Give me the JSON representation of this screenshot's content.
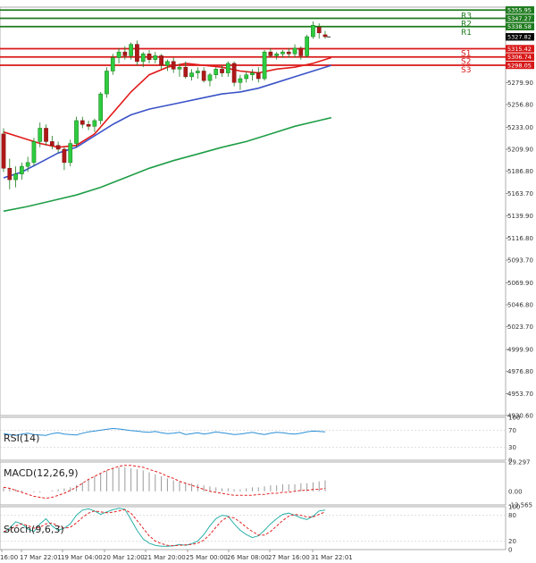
{
  "chart_data": {
    "type": "candlestick",
    "price_axis": {
      "ticks": [
        "5279.90",
        "5256.80",
        "5233.00",
        "5209.90",
        "5186.80",
        "5163.70",
        "5139.90",
        "5116.80",
        "5093.70",
        "5069.90",
        "5046.80",
        "5023.70",
        "4999.90",
        "4976.80",
        "4953.70",
        "4930.60"
      ],
      "tick_values": [
        5279.9,
        5256.8,
        5233.0,
        5209.9,
        5186.8,
        5163.7,
        5139.9,
        5116.8,
        5093.7,
        5069.9,
        5046.8,
        5023.7,
        4999.9,
        4976.8,
        4953.7,
        4930.6
      ],
      "range": [
        4930.6,
        5359.0
      ]
    },
    "time_axis": {
      "labels": [
        "16:00",
        "17 Mar 22:01",
        "19 Mar 04:00",
        "20 Mar 12:00",
        "21 Mar 20:00",
        "25 Mar 00:00",
        "26 Mar 08:00",
        "27 Mar 16:00",
        "31 Mar 22:01"
      ]
    },
    "levels": [
      {
        "name": "R3",
        "value": 5355.95,
        "label": "5355.95",
        "color": "#1e7b1e"
      },
      {
        "name": "R2",
        "value": 5347.27,
        "label": "5347.27",
        "color": "#1e7b1e"
      },
      {
        "name": "R1",
        "value": 5338.58,
        "label": "5338.58",
        "color": "#1e7b1e"
      },
      {
        "name": "S1",
        "value": 5315.42,
        "label": "5315.42",
        "color": "#d81818"
      },
      {
        "name": "S2",
        "value": 5306.74,
        "label": "5306.74",
        "color": "#d81818"
      },
      {
        "name": "S3",
        "value": 5298.05,
        "label": "5298.05",
        "color": "#d81818"
      }
    ],
    "last_price": {
      "value": 5327.82,
      "label": "5327.82"
    },
    "candles": [
      {
        "o": 5226,
        "h": 5232,
        "l": 5186,
        "c": 5190
      },
      {
        "o": 5190,
        "h": 5200,
        "l": 5168,
        "c": 5178
      },
      {
        "o": 5178,
        "h": 5192,
        "l": 5170,
        "c": 5184
      },
      {
        "o": 5184,
        "h": 5196,
        "l": 5178,
        "c": 5192
      },
      {
        "o": 5192,
        "h": 5202,
        "l": 5186,
        "c": 5196
      },
      {
        "o": 5196,
        "h": 5222,
        "l": 5192,
        "c": 5218
      },
      {
        "o": 5218,
        "h": 5238,
        "l": 5212,
        "c": 5232
      },
      {
        "o": 5232,
        "h": 5236,
        "l": 5214,
        "c": 5218
      },
      {
        "o": 5218,
        "h": 5224,
        "l": 5210,
        "c": 5214
      },
      {
        "o": 5214,
        "h": 5218,
        "l": 5206,
        "c": 5210
      },
      {
        "o": 5210,
        "h": 5212,
        "l": 5188,
        "c": 5196
      },
      {
        "o": 5196,
        "h": 5220,
        "l": 5192,
        "c": 5216
      },
      {
        "o": 5216,
        "h": 5244,
        "l": 5212,
        "c": 5240
      },
      {
        "o": 5240,
        "h": 5244,
        "l": 5232,
        "c": 5236
      },
      {
        "o": 5236,
        "h": 5240,
        "l": 5230,
        "c": 5234
      },
      {
        "o": 5234,
        "h": 5242,
        "l": 5228,
        "c": 5240
      },
      {
        "o": 5240,
        "h": 5270,
        "l": 5236,
        "c": 5268
      },
      {
        "o": 5268,
        "h": 5296,
        "l": 5264,
        "c": 5292
      },
      {
        "o": 5292,
        "h": 5310,
        "l": 5288,
        "c": 5306
      },
      {
        "o": 5306,
        "h": 5316,
        "l": 5300,
        "c": 5312
      },
      {
        "o": 5312,
        "h": 5318,
        "l": 5304,
        "c": 5308
      },
      {
        "o": 5308,
        "h": 5322,
        "l": 5304,
        "c": 5320
      },
      {
        "o": 5320,
        "h": 5324,
        "l": 5298,
        "c": 5302
      },
      {
        "o": 5302,
        "h": 5312,
        "l": 5296,
        "c": 5310
      },
      {
        "o": 5310,
        "h": 5314,
        "l": 5300,
        "c": 5304
      },
      {
        "o": 5304,
        "h": 5312,
        "l": 5300,
        "c": 5308
      },
      {
        "o": 5308,
        "h": 5310,
        "l": 5294,
        "c": 5298
      },
      {
        "o": 5298,
        "h": 5304,
        "l": 5292,
        "c": 5302
      },
      {
        "o": 5302,
        "h": 5306,
        "l": 5290,
        "c": 5294
      },
      {
        "o": 5294,
        "h": 5300,
        "l": 5286,
        "c": 5296
      },
      {
        "o": 5296,
        "h": 5302,
        "l": 5284,
        "c": 5286
      },
      {
        "o": 5286,
        "h": 5294,
        "l": 5282,
        "c": 5290
      },
      {
        "o": 5290,
        "h": 5296,
        "l": 5284,
        "c": 5292
      },
      {
        "o": 5292,
        "h": 5296,
        "l": 5280,
        "c": 5282
      },
      {
        "o": 5282,
        "h": 5290,
        "l": 5276,
        "c": 5288
      },
      {
        "o": 5288,
        "h": 5296,
        "l": 5284,
        "c": 5294
      },
      {
        "o": 5294,
        "h": 5298,
        "l": 5286,
        "c": 5290
      },
      {
        "o": 5290,
        "h": 5302,
        "l": 5286,
        "c": 5300
      },
      {
        "o": 5300,
        "h": 5302,
        "l": 5276,
        "c": 5280
      },
      {
        "o": 5280,
        "h": 5288,
        "l": 5272,
        "c": 5284
      },
      {
        "o": 5284,
        "h": 5292,
        "l": 5280,
        "c": 5288
      },
      {
        "o": 5288,
        "h": 5294,
        "l": 5282,
        "c": 5290
      },
      {
        "o": 5290,
        "h": 5296,
        "l": 5280,
        "c": 5284
      },
      {
        "o": 5284,
        "h": 5314,
        "l": 5282,
        "c": 5312
      },
      {
        "o": 5312,
        "h": 5316,
        "l": 5306,
        "c": 5308
      },
      {
        "o": 5308,
        "h": 5312,
        "l": 5304,
        "c": 5310
      },
      {
        "o": 5310,
        "h": 5314,
        "l": 5306,
        "c": 5312
      },
      {
        "o": 5312,
        "h": 5316,
        "l": 5306,
        "c": 5310
      },
      {
        "o": 5310,
        "h": 5320,
        "l": 5306,
        "c": 5316
      },
      {
        "o": 5316,
        "h": 5318,
        "l": 5304,
        "c": 5308
      },
      {
        "o": 5308,
        "h": 5330,
        "l": 5306,
        "c": 5328
      },
      {
        "o": 5328,
        "h": 5344,
        "l": 5326,
        "c": 5340
      },
      {
        "o": 5338,
        "h": 5342,
        "l": 5326,
        "c": 5332
      },
      {
        "o": 5330,
        "h": 5334,
        "l": 5326,
        "c": 5328
      }
    ],
    "moving_averages": [
      {
        "color": "#e21a1a",
        "points": [
          [
            0,
            5228
          ],
          [
            3,
            5222
          ],
          [
            6,
            5216
          ],
          [
            9,
            5212
          ],
          [
            12,
            5214
          ],
          [
            15,
            5226
          ],
          [
            18,
            5248
          ],
          [
            21,
            5270
          ],
          [
            24,
            5288
          ],
          [
            27,
            5296
          ],
          [
            30,
            5300
          ],
          [
            33,
            5298
          ],
          [
            36,
            5296
          ],
          [
            39,
            5292
          ],
          [
            42,
            5290
          ],
          [
            45,
            5294
          ],
          [
            48,
            5296
          ],
          [
            51,
            5300
          ],
          [
            54,
            5306
          ]
        ]
      },
      {
        "color": "#3a52c8",
        "points": [
          [
            0,
            5180
          ],
          [
            3,
            5186
          ],
          [
            6,
            5196
          ],
          [
            9,
            5206
          ],
          [
            12,
            5212
          ],
          [
            15,
            5224
          ],
          [
            18,
            5236
          ],
          [
            21,
            5246
          ],
          [
            24,
            5252
          ],
          [
            27,
            5256
          ],
          [
            30,
            5260
          ],
          [
            33,
            5264
          ],
          [
            36,
            5268
          ],
          [
            39,
            5270
          ],
          [
            42,
            5274
          ],
          [
            45,
            5280
          ],
          [
            48,
            5286
          ],
          [
            51,
            5292
          ],
          [
            54,
            5298
          ]
        ]
      },
      {
        "color": "#1f9e47",
        "points": [
          [
            0,
            5145
          ],
          [
            4,
            5150
          ],
          [
            8,
            5156
          ],
          [
            12,
            5162
          ],
          [
            16,
            5170
          ],
          [
            20,
            5180
          ],
          [
            24,
            5190
          ],
          [
            28,
            5198
          ],
          [
            32,
            5205
          ],
          [
            36,
            5212
          ],
          [
            40,
            5218
          ],
          [
            44,
            5226
          ],
          [
            48,
            5234
          ],
          [
            52,
            5240
          ],
          [
            54,
            5243
          ]
        ]
      }
    ],
    "indicators": {
      "rsi": {
        "label": "RSI(14)",
        "ticks": [
          "100",
          "70",
          "30",
          "0"
        ],
        "tick_values": [
          100,
          70,
          30,
          0
        ],
        "values": [
          62,
          60,
          58,
          61,
          63,
          60,
          59,
          58,
          62,
          64,
          61,
          60,
          59,
          63,
          66,
          68,
          70,
          72,
          74,
          73,
          71,
          69,
          68,
          66,
          65,
          67,
          64,
          62,
          63,
          65,
          60,
          62,
          64,
          61,
          63,
          66,
          64,
          62,
          60,
          61,
          63,
          65,
          62,
          60,
          63,
          65,
          64,
          62,
          61,
          63,
          66,
          68,
          67,
          66
        ]
      },
      "macd": {
        "label": "MACD(12,26,9)",
        "ticks": [
          "29.297",
          "0.00",
          "-13.565"
        ],
        "tick_values": [
          29.297,
          0,
          -13.565
        ],
        "range": [
          -13.565,
          29.297
        ],
        "histogram": [
          4,
          3,
          2,
          1,
          0,
          -1,
          -1,
          0,
          1,
          2,
          3,
          4,
          6,
          9,
          12,
          15,
          18,
          21,
          23,
          24,
          24,
          23,
          22,
          21,
          19,
          17,
          15,
          13,
          11,
          10,
          9,
          8,
          7,
          6,
          5,
          4,
          3,
          3,
          2,
          2,
          3,
          4,
          4,
          5,
          6,
          6,
          7,
          7,
          7,
          8,
          8,
          9,
          10,
          11
        ],
        "signal": [
          4,
          3,
          1,
          -1,
          -3,
          -5,
          -6,
          -7,
          -6,
          -4,
          -2,
          1,
          4,
          8,
          12,
          15,
          18,
          21,
          23,
          25,
          26,
          26,
          25,
          24,
          22,
          20,
          18,
          15,
          13,
          10,
          8,
          6,
          4,
          2,
          0,
          -1,
          -2,
          -3,
          -4,
          -4,
          -4,
          -4,
          -3,
          -3,
          -2,
          -2,
          -1,
          -1,
          0,
          1,
          1,
          2,
          2,
          3
        ]
      },
      "stoch": {
        "label": "Stoch(9,6,3)",
        "ticks": [
          "100",
          "80",
          "20",
          "0"
        ],
        "tick_values": [
          100,
          80,
          20,
          0
        ],
        "k": [
          40,
          50,
          65,
          60,
          48,
          42,
          60,
          72,
          55,
          45,
          50,
          60,
          80,
          92,
          95,
          90,
          82,
          88,
          93,
          96,
          94,
          70,
          45,
          25,
          15,
          10,
          8,
          8,
          9,
          12,
          10,
          14,
          20,
          35,
          55,
          72,
          80,
          78,
          60,
          45,
          35,
          28,
          32,
          45,
          60,
          72,
          82,
          85,
          80,
          74,
          70,
          78,
          90,
          92
        ],
        "d": [
          42,
          46,
          55,
          60,
          56,
          50,
          52,
          60,
          62,
          55,
          50,
          52,
          62,
          75,
          85,
          90,
          88,
          86,
          87,
          90,
          93,
          85,
          68,
          50,
          32,
          20,
          14,
          10,
          9,
          10,
          11,
          12,
          15,
          22,
          35,
          52,
          68,
          76,
          74,
          64,
          52,
          42,
          34,
          34,
          42,
          55,
          68,
          78,
          82,
          80,
          76,
          76,
          82,
          88
        ]
      }
    }
  }
}
